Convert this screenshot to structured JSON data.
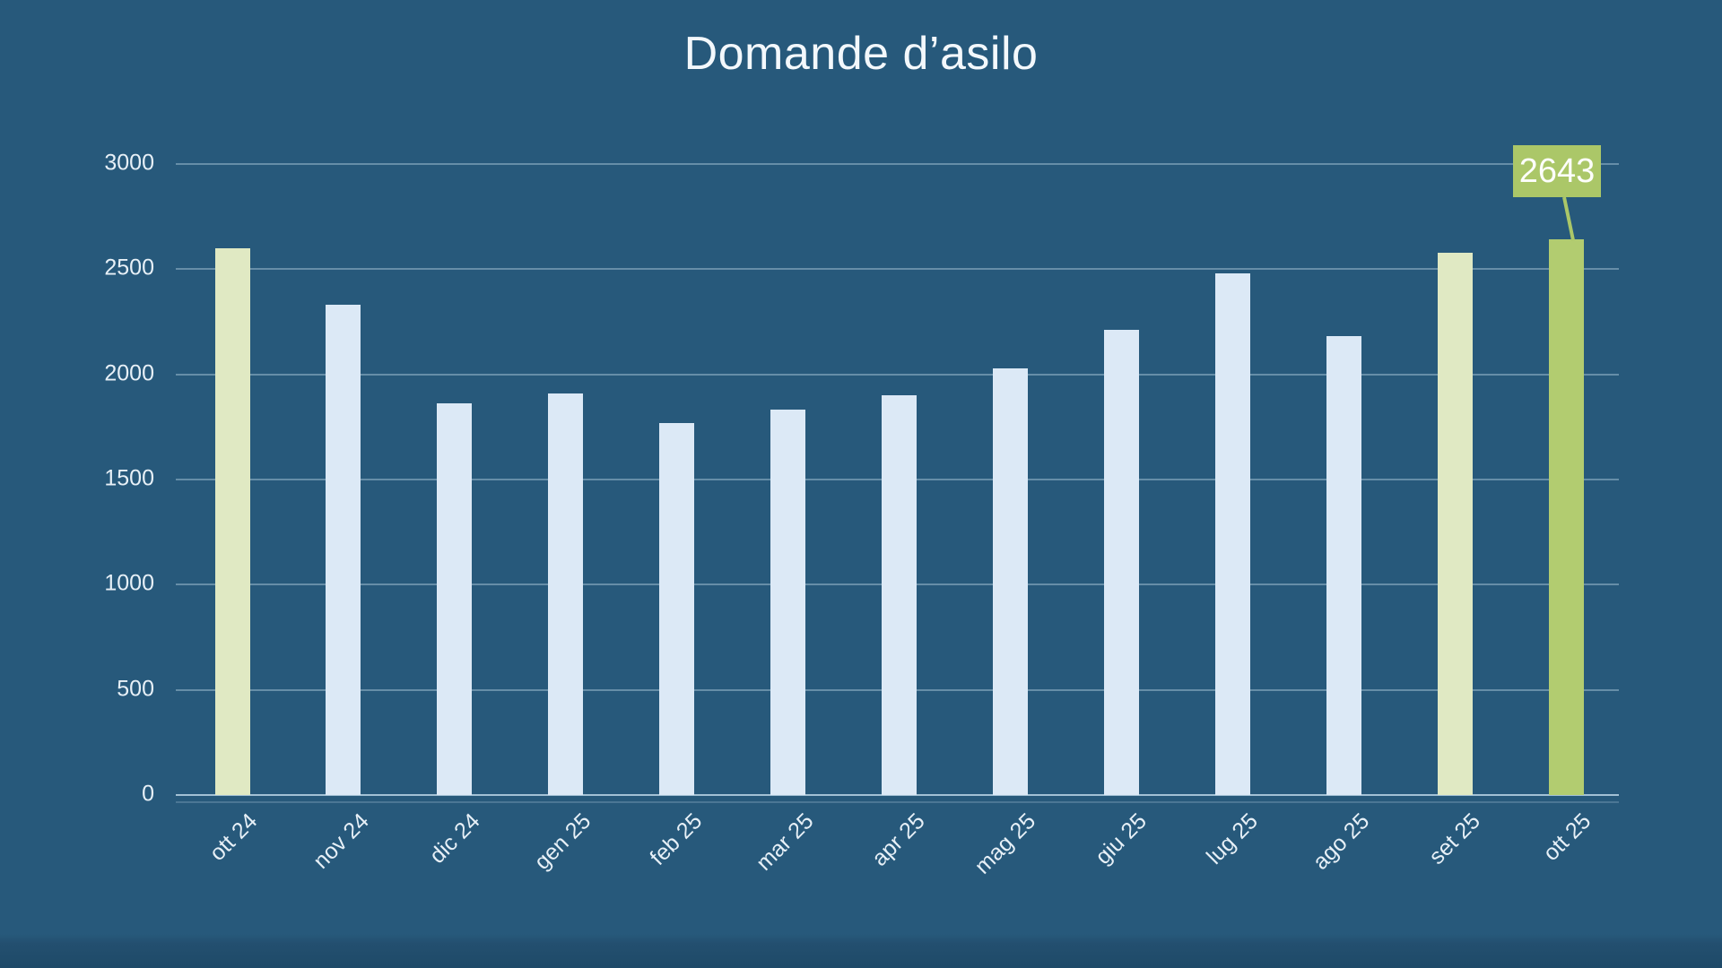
{
  "title": "Domande d’asilo",
  "colors": {
    "background": "#27597b",
    "bar_blue": "#dce9f6",
    "bar_light_green": "#e0e9c3",
    "bar_dark_green": "#b2cc70",
    "callout_box": "#abc768",
    "gridline": "#cde4f3",
    "axis_text": "#e7f0f7",
    "title_text": "#f3f8fc",
    "data_label_text": "#fdfefb"
  },
  "chart_data": {
    "type": "bar",
    "title": "Domande d’asilo",
    "categories": [
      "ott 24",
      "nov 24",
      "dic 24",
      "gen 25",
      "feb 25",
      "mar 25",
      "apr 25",
      "mag 25",
      "giu 25",
      "lug 25",
      "ago 25",
      "set 25",
      "ott 25"
    ],
    "values": [
      2600,
      2330,
      1860,
      1910,
      1770,
      1830,
      1900,
      2030,
      2210,
      2480,
      2180,
      2580,
      2643
    ],
    "bar_styles": [
      "light_green",
      "blue",
      "blue",
      "blue",
      "blue",
      "blue",
      "blue",
      "blue",
      "blue",
      "blue",
      "blue",
      "light_green",
      "dark_green"
    ],
    "xlabel": "",
    "ylabel": "",
    "ylim": [
      0,
      3000
    ],
    "yticks": [
      0,
      500,
      1000,
      1500,
      2000,
      2500,
      3000
    ],
    "grid": true,
    "legend": false,
    "annotations": [
      {
        "index": 12,
        "text": "2643"
      }
    ]
  }
}
